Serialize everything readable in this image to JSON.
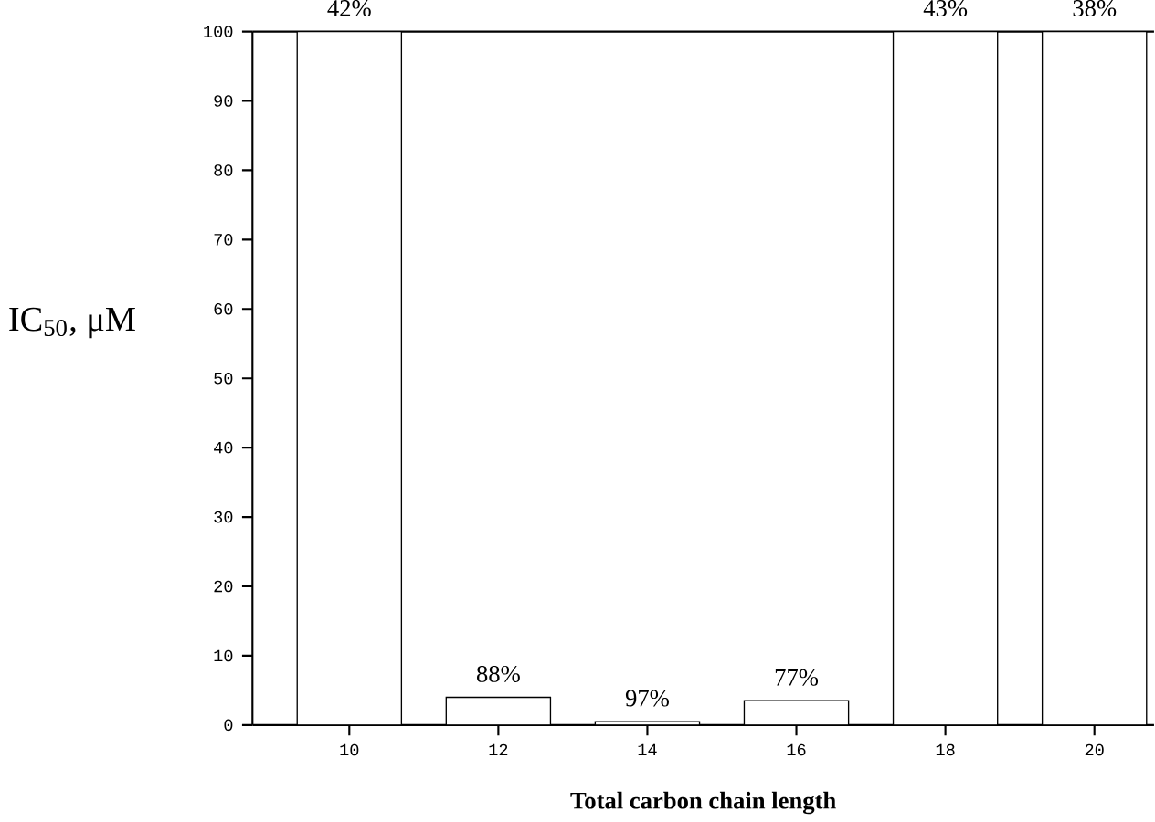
{
  "chart_data": {
    "type": "bar",
    "xlabel": "Total carbon chain length",
    "ylabel": "IC$_{50}$, μM",
    "categories": [
      "10",
      "12",
      "14",
      "16",
      "18",
      "20"
    ],
    "values": [
      100,
      4,
      0.5,
      3.5,
      100,
      100
    ],
    "annotations": [
      {
        "text": "42%",
        "x": "10",
        "y": 100
      },
      {
        "text": "88%",
        "x": "12",
        "y": 4
      },
      {
        "text": "97%",
        "x": "14",
        "y": 0.5
      },
      {
        "text": "77%",
        "x": "16",
        "y": 3.5
      },
      {
        "text": "43%",
        "x": "18",
        "y": 100
      },
      {
        "text": "38%",
        "x": "20",
        "y": 100
      }
    ],
    "color": "#ffffff",
    "ylim": [
      0,
      100
    ],
    "yticks": [
      0,
      10,
      20,
      30,
      40,
      50,
      60,
      70,
      80,
      90,
      100
    ],
    "grid": false
  }
}
